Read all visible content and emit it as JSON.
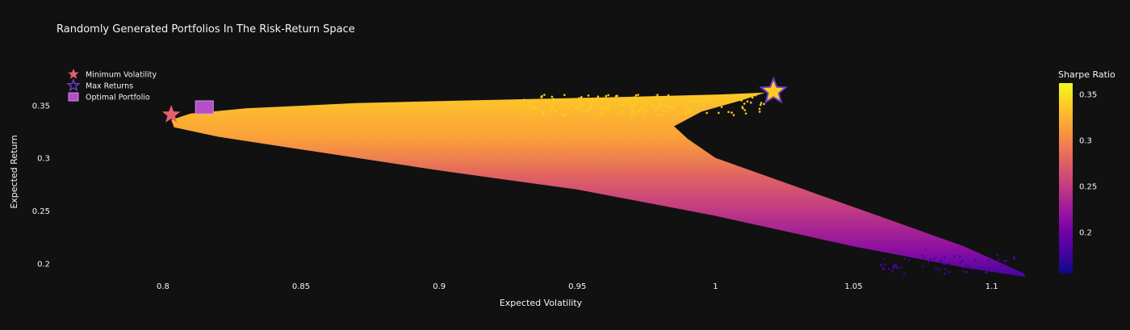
{
  "chart_data": {
    "type": "scatter",
    "title": "Randomly Generated Portfolios In The Risk-Return Space",
    "xlabel": "Expected Volatility",
    "ylabel": "Expected Return",
    "xlim": [
      0.76,
      1.115
    ],
    "ylim": [
      0.188,
      0.387
    ],
    "xticks": [
      {
        "value": 0.8,
        "label": "0.8"
      },
      {
        "value": 0.85,
        "label": "0.85"
      },
      {
        "value": 0.9,
        "label": "0.9"
      },
      {
        "value": 0.95,
        "label": "0.95"
      },
      {
        "value": 1.0,
        "label": "1"
      },
      {
        "value": 1.05,
        "label": "1.05"
      },
      {
        "value": 1.1,
        "label": "1.1"
      }
    ],
    "yticks": [
      {
        "value": 0.2,
        "label": "0.2"
      },
      {
        "value": 0.25,
        "label": "0.25"
      },
      {
        "value": 0.3,
        "label": "0.3"
      },
      {
        "value": 0.35,
        "label": "0.35"
      }
    ],
    "grid": false,
    "background": "#111111",
    "colorbar": {
      "title": "Sharpe Ratio",
      "colorscale": "Plasma",
      "range": [
        0.155,
        0.362
      ],
      "ticks": [
        {
          "value": 0.2,
          "label": "0.2"
        },
        {
          "value": 0.25,
          "label": "0.25"
        },
        {
          "value": 0.3,
          "label": "0.3"
        },
        {
          "value": 0.35,
          "label": "0.35"
        }
      ]
    },
    "efficient_frontier_cloud": {
      "points": [
        {
          "x": 1.112,
          "y": 0.187
        },
        {
          "x": 1.09,
          "y": 0.196
        },
        {
          "x": 1.05,
          "y": 0.216
        },
        {
          "x": 1.0,
          "y": 0.245
        },
        {
          "x": 0.95,
          "y": 0.27
        },
        {
          "x": 0.9,
          "y": 0.288
        },
        {
          "x": 0.85,
          "y": 0.308
        },
        {
          "x": 0.82,
          "y": 0.32
        },
        {
          "x": 0.804,
          "y": 0.329
        },
        {
          "x": 0.803,
          "y": 0.336
        },
        {
          "x": 0.81,
          "y": 0.342
        },
        {
          "x": 0.83,
          "y": 0.347
        },
        {
          "x": 0.87,
          "y": 0.352
        },
        {
          "x": 0.92,
          "y": 0.355
        },
        {
          "x": 0.97,
          "y": 0.358
        },
        {
          "x": 1.0,
          "y": 0.36
        },
        {
          "x": 1.018,
          "y": 0.362
        },
        {
          "x": 1.01,
          "y": 0.355
        },
        {
          "x": 0.995,
          "y": 0.344
        },
        {
          "x": 0.985,
          "y": 0.33
        },
        {
          "x": 0.99,
          "y": 0.318
        },
        {
          "x": 1.0,
          "y": 0.3
        },
        {
          "x": 1.03,
          "y": 0.272
        },
        {
          "x": 1.06,
          "y": 0.244
        },
        {
          "x": 1.09,
          "y": 0.216
        },
        {
          "x": 1.112,
          "y": 0.19
        }
      ]
    },
    "series": [
      {
        "name": "Minimum Volatility",
        "symbol": "star",
        "color": "#e4606d",
        "points": [
          {
            "x": 0.803,
            "y": 0.341
          }
        ]
      },
      {
        "name": "Max Returns",
        "symbol": "star-open",
        "color": "#6b3fc4",
        "points": [
          {
            "x": 1.021,
            "y": 0.363
          }
        ]
      },
      {
        "name": "Optimal Portfolio",
        "symbol": "square",
        "color": "#b44fc8",
        "points": [
          {
            "x": 0.815,
            "y": 0.348
          }
        ]
      }
    ]
  }
}
